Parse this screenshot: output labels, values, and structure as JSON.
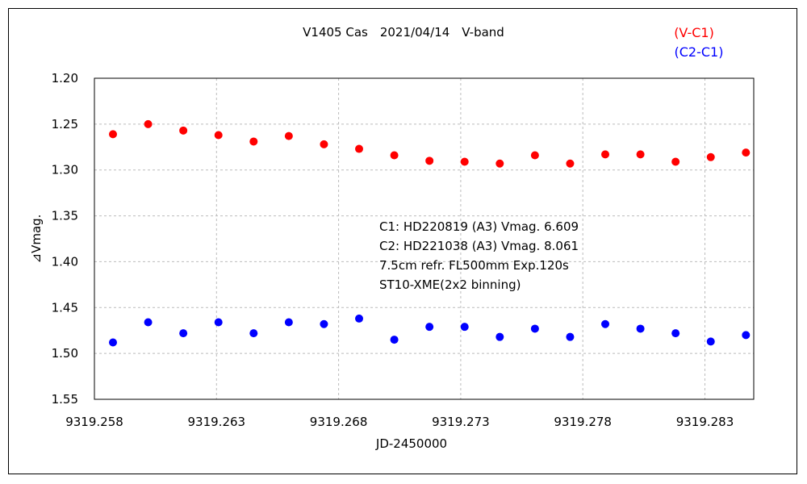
{
  "chart_data": {
    "type": "scatter",
    "title": "V1405 Cas　2021/04/14　V-band",
    "xlabel": "JD-2450000",
    "ylabel": "⊿Vmag.",
    "xlim": [
      9319.258,
      9319.285
    ],
    "ylim": [
      1.2,
      1.55
    ],
    "y_inverted": true,
    "grid": true,
    "legend_position": "top-right",
    "xticks": [
      "9319.258",
      "9319.263",
      "9319.268",
      "9319.273",
      "9319.278",
      "9319.283"
    ],
    "xtick_values": [
      9319.258,
      9319.263,
      9319.268,
      9319.273,
      9319.278,
      9319.283
    ],
    "yticks": [
      "1.20",
      "1.25",
      "1.30",
      "1.35",
      "1.40",
      "1.45",
      "1.50",
      "1.55"
    ],
    "ytick_values": [
      1.2,
      1.25,
      1.3,
      1.35,
      1.4,
      1.45,
      1.5,
      1.55
    ],
    "x": [
      9319.25876,
      9319.2602,
      9319.26164,
      9319.26308,
      9319.26452,
      9319.26596,
      9319.2674,
      9319.26884,
      9319.27028,
      9319.27172,
      9319.27316,
      9319.2746,
      9319.27604,
      9319.27748,
      9319.27892,
      9319.28036,
      9319.2818,
      9319.28324,
      9319.28468
    ],
    "series": [
      {
        "name": "(V-C1)",
        "color": "#ff0000",
        "values": [
          1.261,
          1.25,
          1.257,
          1.262,
          1.269,
          1.263,
          1.272,
          1.277,
          1.284,
          1.29,
          1.291,
          1.293,
          1.284,
          1.293,
          1.283,
          1.283,
          1.291,
          1.286,
          1.281
        ]
      },
      {
        "name": "(C2-C1)",
        "color": "#0000ff",
        "values": [
          1.488,
          1.466,
          1.478,
          1.466,
          1.478,
          1.466,
          1.468,
          1.462,
          1.485,
          1.471,
          1.471,
          1.482,
          1.473,
          1.482,
          1.468,
          1.473,
          1.478,
          1.487,
          1.48
        ]
      }
    ],
    "annotations": [
      "C1: HD220819 (A3) Vmag. 6.609",
      "C2: HD221038 (A3) Vmag. 8.061",
      "7.5cm refr. FL500mm  Exp.120s",
      "ST10-XME(2x2 binning)"
    ]
  }
}
